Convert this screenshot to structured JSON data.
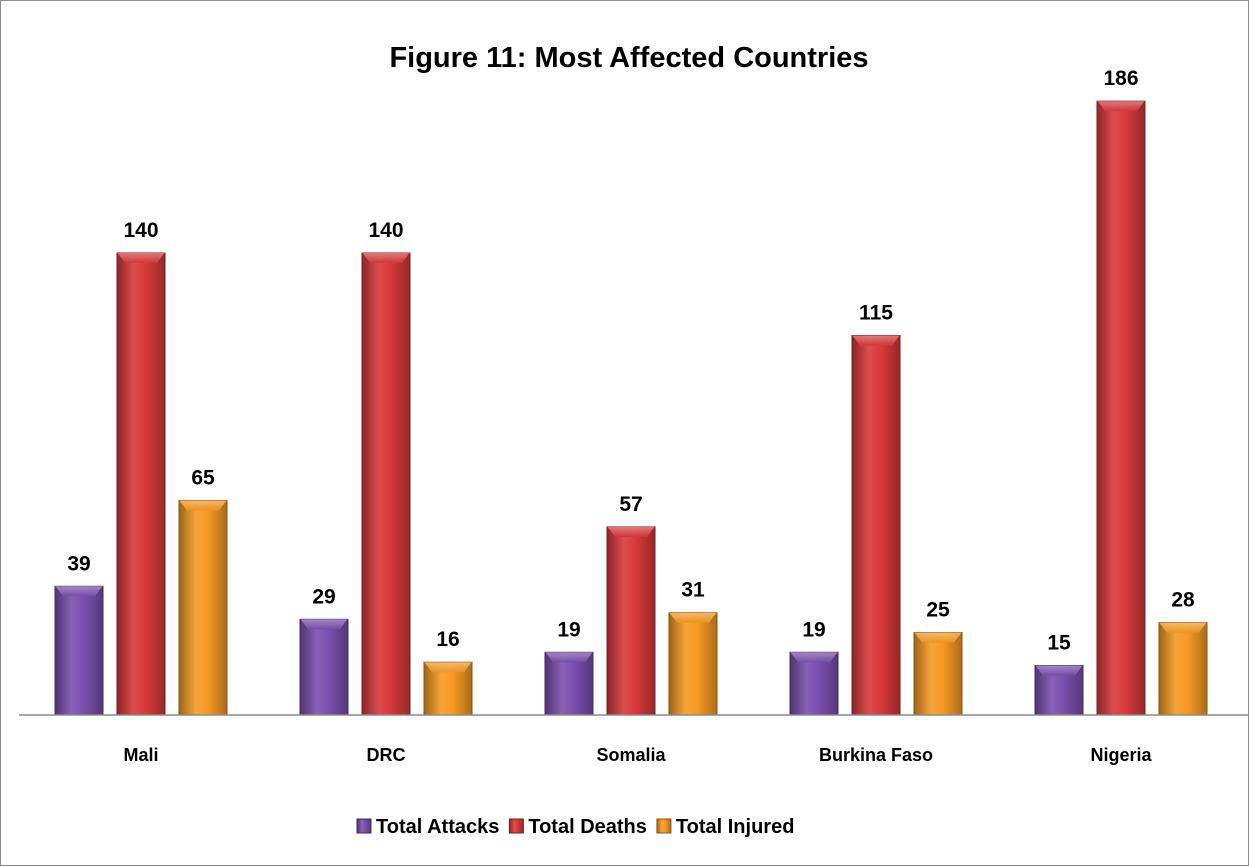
{
  "chart_data": {
    "type": "bar",
    "title": "Figure 11: Most Affected Countries",
    "categories": [
      "Mali",
      "DRC",
      "Somalia",
      "Burkina Faso",
      "Nigeria"
    ],
    "series": [
      {
        "name": "Total Attacks",
        "color": "#7b4fae",
        "values": [
          39,
          29,
          19,
          19,
          15
        ]
      },
      {
        "name": "Total Deaths",
        "color": "#d8393b",
        "values": [
          140,
          140,
          57,
          115,
          186
        ]
      },
      {
        "name": "Total Injured",
        "color": "#f59a23",
        "values": [
          65,
          16,
          31,
          25,
          28
        ]
      }
    ],
    "ylim": [
      0,
      200
    ],
    "grid": false,
    "legend": "bottom",
    "data_labels": true
  }
}
